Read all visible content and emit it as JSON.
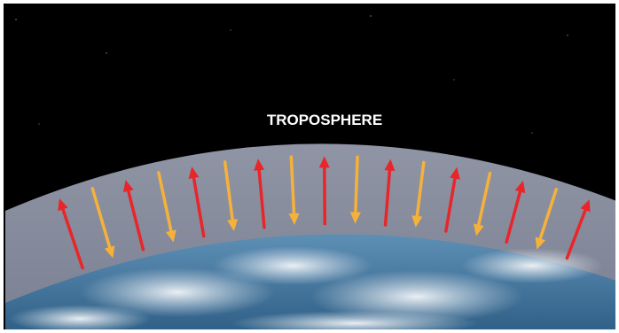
{
  "diagram": {
    "label": "TROPOSPHERE",
    "arrow_pattern": [
      "up",
      "down",
      "up",
      "down",
      "up",
      "down",
      "up",
      "down",
      "up",
      "down",
      "up",
      "down",
      "up",
      "down",
      "up",
      "down",
      "up"
    ],
    "colors": {
      "space": "#000000",
      "atmosphere": "#8a8f9e",
      "ocean": "#3a6f96",
      "cloud": "#e8eef3",
      "up_arrow": "#e8262a",
      "down_arrow": "#f6b13b",
      "label": "#ffffff"
    },
    "icons": {
      "up_arrow": "arrow-up-icon",
      "down_arrow": "arrow-down-icon"
    }
  }
}
